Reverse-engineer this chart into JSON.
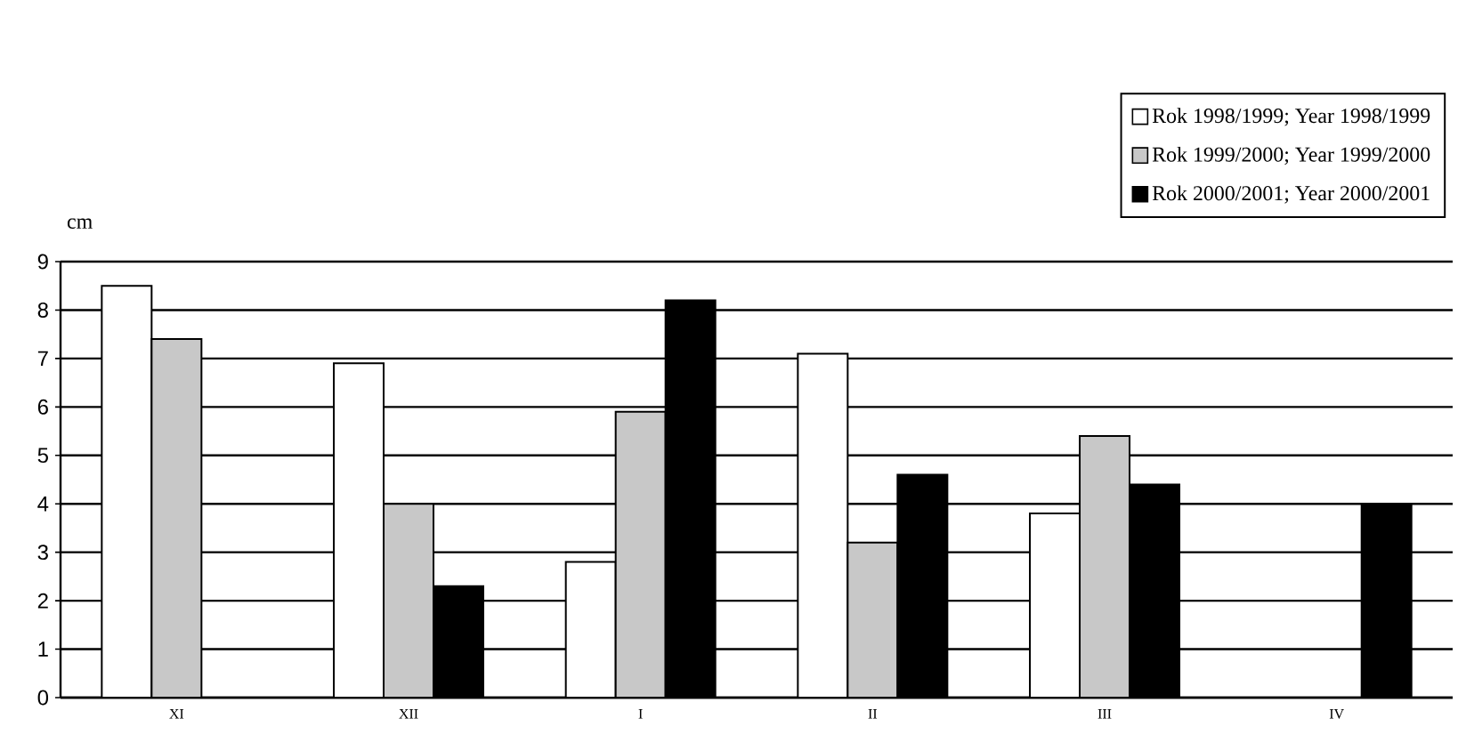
{
  "chart_data": {
    "type": "bar",
    "ylabel": "cm",
    "categories": [
      "XI",
      "XII",
      "I",
      "II",
      "III",
      "IV"
    ],
    "series": [
      {
        "name": "Rok 1998/1999; Year 1998/1999",
        "color": "#ffffff",
        "values": [
          8.5,
          6.9,
          2.8,
          7.1,
          3.8,
          null
        ]
      },
      {
        "name": "Rok 1999/2000; Year 1999/2000",
        "color": "#c8c8c8",
        "values": [
          7.4,
          4.0,
          5.9,
          3.2,
          5.4,
          null
        ]
      },
      {
        "name": "Rok 2000/2001; Year 2000/2001",
        "color": "#000000",
        "values": [
          null,
          2.3,
          8.2,
          4.6,
          4.4,
          4.0
        ]
      }
    ],
    "ylim": [
      0,
      9
    ],
    "yticks": [
      0,
      1,
      2,
      3,
      4,
      5,
      6,
      7,
      8,
      9
    ],
    "grid": "y",
    "legend": "top right"
  }
}
